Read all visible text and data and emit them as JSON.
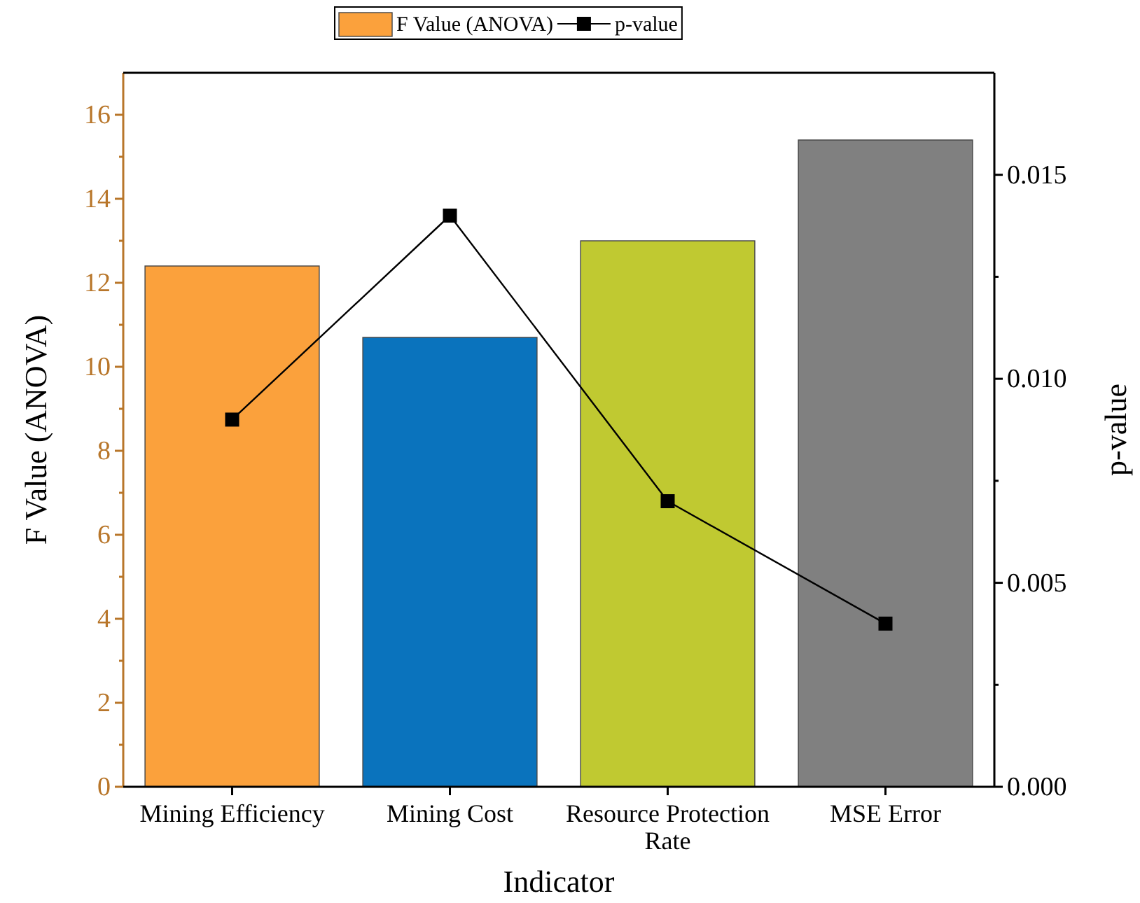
{
  "chart_data": {
    "type": "bar",
    "xlabel": "Indicator",
    "ylabel": "F Value (ANOVA)",
    "y2label": "p-value",
    "categories": [
      "Mining Efficiency",
      "Mining Cost",
      "Resource Protection Rate",
      "MSE Error"
    ],
    "series": [
      {
        "name": "F Value (ANOVA)",
        "colors": [
          "#fba13c",
          "#0a73bd",
          "#c0c931",
          "#808080"
        ],
        "color": "#fba13c",
        "values": [
          12.4,
          10.7,
          13.0,
          15.4
        ]
      },
      {
        "name": "p-value",
        "type": "line",
        "axis": "y2",
        "color": "#000000",
        "marker": "square",
        "values": [
          0.009,
          0.014,
          0.007,
          0.004
        ]
      }
    ],
    "ylim": [
      0,
      17
    ],
    "yticks": [
      0,
      {
        "value": 1,
        "label": null
      },
      2,
      {
        "value": 3,
        "label": null
      },
      4,
      {
        "value": 5,
        "label": null
      },
      6,
      {
        "value": 7,
        "label": null
      },
      8,
      {
        "value": 9,
        "label": null
      },
      10,
      {
        "value": 11,
        "label": null
      },
      12,
      {
        "value": 13,
        "label": null
      },
      14,
      {
        "value": 15,
        "label": null
      },
      16
    ],
    "y2lim": [
      0,
      0.0175
    ],
    "y2ticks": [
      {
        "value": 0,
        "label": "0.000"
      },
      {
        "value": 0.0025,
        "label": null
      },
      {
        "value": 0.005,
        "label": "0.005"
      },
      {
        "value": 0.0075,
        "label": null
      },
      {
        "value": 0.01,
        "label": "0.010"
      },
      {
        "value": 0.0125,
        "label": null
      },
      {
        "value": 0.015,
        "label": "0.015"
      }
    ],
    "legend": "top",
    "grid": false
  }
}
